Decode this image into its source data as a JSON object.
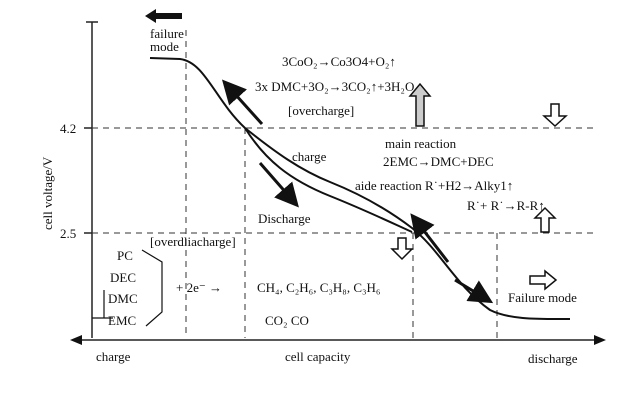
{
  "axes": {
    "y_label": "cell voltage/V",
    "y_ticks": [
      "4.2",
      "2.5"
    ],
    "x_label": "cell capacity",
    "x_left": "charge",
    "x_right": "discharge"
  },
  "labels": {
    "failure_mode_top": [
      "failure",
      "mode"
    ],
    "failure_mode_right": "Failure mode",
    "charge": "charge",
    "discharge": "Discharge",
    "overcharge_eq1": "3CoO₂→Co3O4+O₂↑",
    "overcharge_eq2": "3x  DMC+3O₂→3CO₂↑+3H₂O",
    "overcharge": "[overcharge]",
    "main_reaction": "main reaction",
    "main_eq": "2EMC→DMC+DEC",
    "side_eq1": "aide reaction R˙+H2→Alky1↑",
    "side_eq2": "R˙+ R˙→R-R↑",
    "overdischarge": "[overdliacharge]",
    "solvents": [
      "PC",
      "DEC",
      "DMC",
      "EMC"
    ],
    "electrons": "+ 2e⁻  →",
    "products1": "CH₄, C₂H₆, C₃H₈, C₃H₆",
    "products2": "CO₂   CO"
  }
}
